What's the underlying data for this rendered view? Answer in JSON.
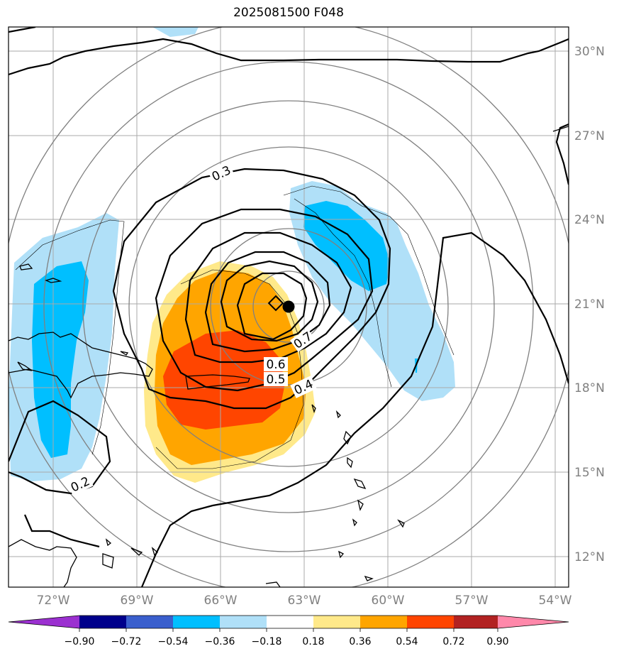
{
  "title": "2025081500 F048",
  "axes": {
    "lon_ticks": [
      "72°W",
      "69°W",
      "66°W",
      "63°W",
      "60°W",
      "57°W",
      "54°W"
    ],
    "lat_ticks": [
      "30°N",
      "27°N",
      "24°N",
      "21°N",
      "18°N",
      "15°N",
      "12°N"
    ],
    "lon_range": [
      -73.5,
      -53.5
    ],
    "lat_range": [
      11,
      31
    ],
    "grid": true
  },
  "colorbar": {
    "ticks": [
      "−0.90",
      "−0.72",
      "−0.54",
      "−0.36",
      "−0.18",
      "0.18",
      "0.36",
      "0.54",
      "0.72",
      "0.90"
    ],
    "colors": [
      "#9b30d0",
      "#00008b",
      "#3a5fcd",
      "#00bfff",
      "#b0e0f8",
      "#ffffff",
      "#ffe98a",
      "#ffa500",
      "#ff4500",
      "#b22222",
      "#ff88aa"
    ]
  },
  "contour_labels": [
    {
      "text": "0.3"
    },
    {
      "text": "0.7"
    },
    {
      "text": "0.6"
    },
    {
      "text": "0.5"
    },
    {
      "text": "0.4"
    },
    {
      "text": "0.2"
    }
  ],
  "storm_center": {
    "lon": -63.6,
    "lat": 20.9,
    "symbol": "filled-circle"
  },
  "diamond_marker": {
    "lon": -64.5,
    "lat": 21.0
  }
}
